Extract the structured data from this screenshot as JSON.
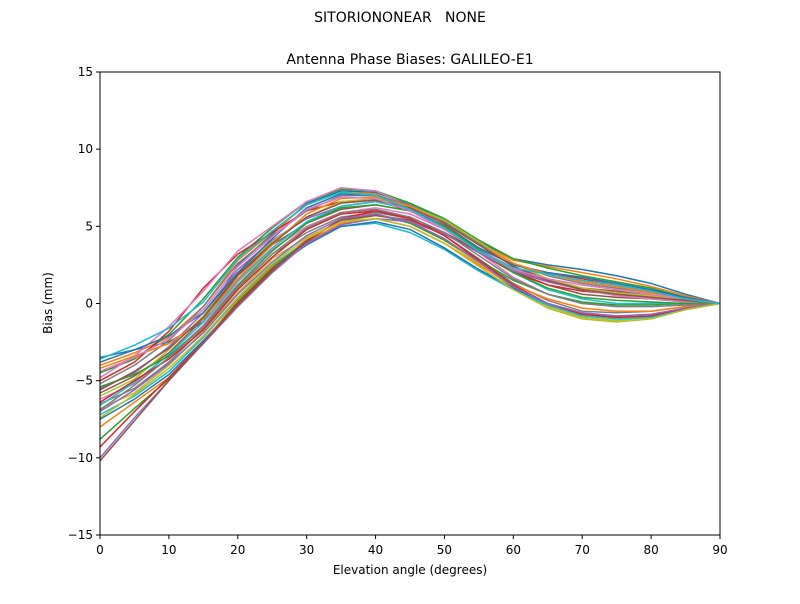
{
  "figure": {
    "suptitle": "SITORIONONEAR   NONE"
  },
  "chart_data": {
    "type": "line",
    "title": "Antenna Phase Biases: GALILEO-E1",
    "xlabel": "Elevation angle (degrees)",
    "ylabel": "Bias (mm)",
    "xlim": [
      0,
      90
    ],
    "ylim": [
      -15,
      15
    ],
    "xticks": [
      0,
      10,
      20,
      30,
      40,
      50,
      60,
      70,
      80,
      90
    ],
    "yticks": [
      -15,
      -10,
      -5,
      0,
      5,
      10,
      15
    ],
    "grid": false,
    "legend": "none",
    "x": [
      0,
      5,
      10,
      15,
      20,
      25,
      30,
      35,
      40,
      45,
      50,
      55,
      60,
      65,
      70,
      75,
      80,
      85,
      90
    ],
    "colors": [
      "#1f77b4",
      "#ff7f0e",
      "#2ca02c",
      "#d62728",
      "#9467bd",
      "#8c564b",
      "#e377c2",
      "#7f7f7f",
      "#bcbd22",
      "#17becf"
    ],
    "series": [
      {
        "values": [
          -3.5,
          -3.0,
          -2.5,
          -1.2,
          2.5,
          4.5,
          6.5,
          7.3,
          7.2,
          6.4,
          5.4,
          4.0,
          2.9,
          2.5,
          2.2,
          1.8,
          1.3,
          0.6,
          0.0
        ]
      },
      {
        "values": [
          -4.0,
          -3.2,
          -2.2,
          -0.2,
          2.8,
          4.6,
          6.4,
          7.2,
          7.1,
          6.2,
          5.2,
          3.9,
          2.8,
          2.4,
          2.0,
          1.6,
          1.1,
          0.5,
          0.0
        ]
      },
      {
        "values": [
          -4.5,
          -3.6,
          -2.0,
          0.3,
          3.0,
          4.9,
          6.6,
          7.4,
          7.3,
          6.5,
          5.5,
          4.1,
          2.9,
          2.3,
          1.8,
          1.4,
          1.0,
          0.4,
          0.0
        ]
      },
      {
        "values": [
          -5.0,
          -3.8,
          -1.8,
          1.0,
          3.2,
          4.6,
          6.0,
          6.6,
          6.7,
          6.0,
          5.0,
          3.6,
          2.5,
          2.0,
          1.6,
          1.2,
          0.8,
          0.4,
          0.0
        ]
      },
      {
        "values": [
          -5.5,
          -4.5,
          -2.8,
          -0.6,
          2.2,
          4.1,
          5.5,
          6.3,
          6.6,
          6.2,
          5.3,
          3.8,
          2.4,
          1.6,
          1.0,
          0.7,
          0.5,
          0.2,
          0.0
        ]
      },
      {
        "values": [
          -5.8,
          -4.7,
          -3.2,
          -1.0,
          1.8,
          3.8,
          5.2,
          6.1,
          6.4,
          6.0,
          5.1,
          3.6,
          2.1,
          1.2,
          0.6,
          0.4,
          0.3,
          0.1,
          0.0
        ]
      },
      {
        "values": [
          -6.2,
          -5.2,
          -3.5,
          -1.4,
          1.4,
          3.5,
          5.0,
          5.9,
          6.2,
          5.8,
          4.8,
          3.3,
          1.7,
          0.6,
          0.0,
          -0.1,
          0.0,
          0.0,
          0.0
        ]
      },
      {
        "values": [
          -6.5,
          -5.5,
          -3.8,
          -1.6,
          1.0,
          3.2,
          4.6,
          5.6,
          5.9,
          5.5,
          4.4,
          2.9,
          1.3,
          0.2,
          -0.5,
          -0.6,
          -0.5,
          -0.2,
          0.0
        ]
      },
      {
        "values": [
          -6.8,
          -5.8,
          -4.0,
          -1.8,
          0.7,
          2.9,
          4.3,
          5.3,
          5.7,
          5.3,
          4.1,
          2.6,
          1.0,
          -0.2,
          -0.9,
          -1.1,
          -0.9,
          -0.4,
          0.0
        ]
      },
      {
        "values": [
          -7.2,
          -6.0,
          -4.4,
          -2.2,
          0.3,
          2.5,
          4.0,
          5.0,
          5.2,
          4.6,
          3.5,
          2.1,
          0.9,
          -0.1,
          -0.8,
          -1.0,
          -0.9,
          -0.4,
          0.0
        ]
      },
      {
        "values": [
          -7.5,
          -6.2,
          -4.6,
          -2.4,
          0.0,
          2.2,
          3.8,
          5.0,
          5.3,
          4.8,
          3.6,
          2.2,
          1.0,
          0.0,
          -0.7,
          -0.9,
          -0.8,
          -0.3,
          0.0
        ]
      },
      {
        "values": [
          -8.0,
          -6.4,
          -4.8,
          -2.5,
          0.2,
          2.4,
          4.0,
          5.2,
          5.5,
          5.0,
          3.9,
          2.5,
          1.2,
          0.3,
          -0.3,
          -0.5,
          -0.5,
          -0.2,
          0.0
        ]
      },
      {
        "values": [
          -8.8,
          -6.8,
          -4.9,
          -2.6,
          0.1,
          2.3,
          4.1,
          5.4,
          5.8,
          5.2,
          4.1,
          2.8,
          1.5,
          0.6,
          0.1,
          -0.1,
          -0.1,
          0.0,
          0.0
        ]
      },
      {
        "values": [
          -9.3,
          -7.0,
          -4.8,
          -2.5,
          0.0,
          2.2,
          4.0,
          5.5,
          6.0,
          5.6,
          4.6,
          3.3,
          2.0,
          1.2,
          0.8,
          0.6,
          0.4,
          0.2,
          0.0
        ]
      },
      {
        "values": [
          -10.0,
          -7.4,
          -5.0,
          -2.6,
          -0.2,
          2.0,
          3.9,
          5.1,
          5.5,
          5.3,
          4.5,
          3.3,
          2.1,
          1.4,
          0.9,
          0.7,
          0.5,
          0.2,
          0.0
        ]
      },
      {
        "values": [
          -10.2,
          -7.6,
          -5.0,
          -2.5,
          -0.1,
          2.1,
          4.1,
          5.4,
          5.7,
          5.4,
          4.6,
          3.4,
          2.2,
          1.5,
          1.0,
          0.8,
          0.5,
          0.2,
          0.0
        ]
      },
      {
        "values": [
          -4.8,
          -3.4,
          -1.5,
          0.8,
          3.4,
          5.0,
          6.6,
          7.5,
          7.3,
          6.3,
          5.0,
          3.5,
          2.3,
          1.5,
          0.9,
          0.5,
          0.3,
          0.1,
          0.0
        ]
      },
      {
        "values": [
          -5.2,
          -4.0,
          -2.4,
          -0.2,
          2.6,
          4.4,
          6.0,
          7.0,
          7.0,
          6.4,
          5.3,
          3.9,
          2.6,
          1.8,
          1.3,
          1.0,
          0.7,
          0.3,
          0.0
        ]
      },
      {
        "values": [
          -6.0,
          -4.9,
          -3.0,
          -0.8,
          2.0,
          4.0,
          5.6,
          6.6,
          6.8,
          6.3,
          5.4,
          4.0,
          2.6,
          1.6,
          1.0,
          0.7,
          0.5,
          0.2,
          0.0
        ]
      },
      {
        "values": [
          -6.6,
          -5.1,
          -3.3,
          -1.2,
          1.5,
          3.6,
          5.3,
          6.3,
          6.6,
          6.1,
          5.0,
          3.5,
          2.0,
          0.9,
          0.3,
          0.0,
          0.0,
          0.0,
          0.0
        ]
      },
      {
        "values": [
          -3.8,
          -3.0,
          -2.1,
          -0.6,
          2.0,
          4.2,
          6.2,
          7.1,
          7.0,
          6.1,
          5.0,
          3.6,
          2.5,
          2.0,
          1.7,
          1.3,
          0.9,
          0.4,
          0.0
        ]
      },
      {
        "values": [
          -4.2,
          -3.4,
          -2.6,
          -1.0,
          1.6,
          3.8,
          5.8,
          6.8,
          6.9,
          6.3,
          5.2,
          3.8,
          2.6,
          1.9,
          1.4,
          1.1,
          0.7,
          0.3,
          0.0
        ]
      },
      {
        "values": [
          -5.4,
          -4.6,
          -3.4,
          -1.5,
          1.2,
          3.4,
          5.2,
          6.2,
          6.4,
          6.0,
          5.0,
          3.5,
          2.0,
          1.0,
          0.4,
          0.2,
          0.1,
          0.0,
          0.0
        ]
      },
      {
        "values": [
          -6.4,
          -5.0,
          -3.6,
          -1.7,
          0.9,
          3.0,
          4.8,
          5.8,
          6.0,
          5.5,
          4.4,
          2.8,
          1.2,
          0.0,
          -0.7,
          -0.9,
          -0.8,
          -0.3,
          0.0
        ]
      },
      {
        "values": [
          -7.0,
          -5.6,
          -3.9,
          -1.9,
          0.6,
          2.7,
          4.4,
          5.5,
          5.8,
          5.3,
          4.2,
          2.7,
          1.1,
          0.0,
          -0.6,
          -0.8,
          -0.7,
          -0.3,
          0.0
        ]
      },
      {
        "values": [
          -5.6,
          -4.4,
          -2.9,
          -0.9,
          1.9,
          3.9,
          5.6,
          6.5,
          6.7,
          6.2,
          5.2,
          3.8,
          2.4,
          1.5,
          0.9,
          0.6,
          0.4,
          0.2,
          0.0
        ]
      },
      {
        "values": [
          -4.4,
          -3.5,
          -2.3,
          -0.4,
          2.4,
          4.3,
          6.1,
          6.9,
          6.8,
          6.0,
          4.8,
          3.4,
          2.2,
          1.6,
          1.2,
          0.9,
          0.6,
          0.3,
          0.0
        ]
      },
      {
        "values": [
          -6.9,
          -5.3,
          -3.5,
          -1.5,
          1.1,
          3.2,
          4.9,
          5.9,
          6.1,
          5.6,
          4.6,
          3.1,
          1.6,
          0.6,
          0.0,
          -0.2,
          -0.2,
          -0.1,
          0.0
        ]
      },
      {
        "values": [
          -7.4,
          -5.9,
          -4.2,
          -2.1,
          0.4,
          2.6,
          4.2,
          5.3,
          5.5,
          5.0,
          3.9,
          2.4,
          0.9,
          -0.3,
          -1.0,
          -1.2,
          -1.0,
          -0.4,
          0.0
        ]
      },
      {
        "values": [
          -3.6,
          -2.7,
          -1.6,
          0.1,
          2.9,
          4.7,
          6.4,
          7.2,
          7.0,
          6.1,
          4.9,
          3.4,
          2.3,
          1.9,
          1.5,
          1.2,
          0.8,
          0.3,
          0.0
        ]
      }
    ]
  }
}
